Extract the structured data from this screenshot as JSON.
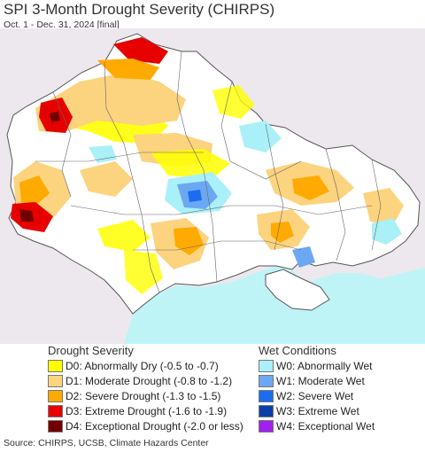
{
  "header": {
    "title": "SPI 3-Month Drought Severity (CHIRPS)",
    "subtitle": "Oct. 1 - Dec. 31, 2024 [final]"
  },
  "map": {
    "land_color": "#ffffff",
    "outside_color": "#ede8ee",
    "sea_color": "#bff4f7",
    "border_color": "#555555"
  },
  "legend": {
    "drought": {
      "title": "Drought Severity",
      "items": [
        {
          "label": "D0: Abnormally Dry (-0.5 to -0.7)",
          "color": "#ffff00"
        },
        {
          "label": "D1: Moderate Drought (-0.8 to -1.2)",
          "color": "#fcd37f"
        },
        {
          "label": "D2: Severe Drought (-1.3 to -1.5)",
          "color": "#ffaa00"
        },
        {
          "label": "D3: Extreme Drought (-1.6 to -1.9)",
          "color": "#e60000"
        },
        {
          "label": "D4: Exceptional Drought (-2.0 or less)",
          "color": "#730000"
        }
      ]
    },
    "wet": {
      "title": "Wet Conditions",
      "items": [
        {
          "label": "W0: Abnormally Wet",
          "color": "#aaf0f8"
        },
        {
          "label": "W1: Moderate Wet",
          "color": "#6ca8f2"
        },
        {
          "label": "W2: Severe Wet",
          "color": "#1c6cf0"
        },
        {
          "label": "W3: Extreme Wet",
          "color": "#0a3fa8"
        },
        {
          "label": "W4: Exceptional Wet",
          "color": "#a020f0"
        }
      ]
    }
  },
  "footer": {
    "source": "Source: CHIRPS, UCSB, Climate Hazards Center"
  }
}
